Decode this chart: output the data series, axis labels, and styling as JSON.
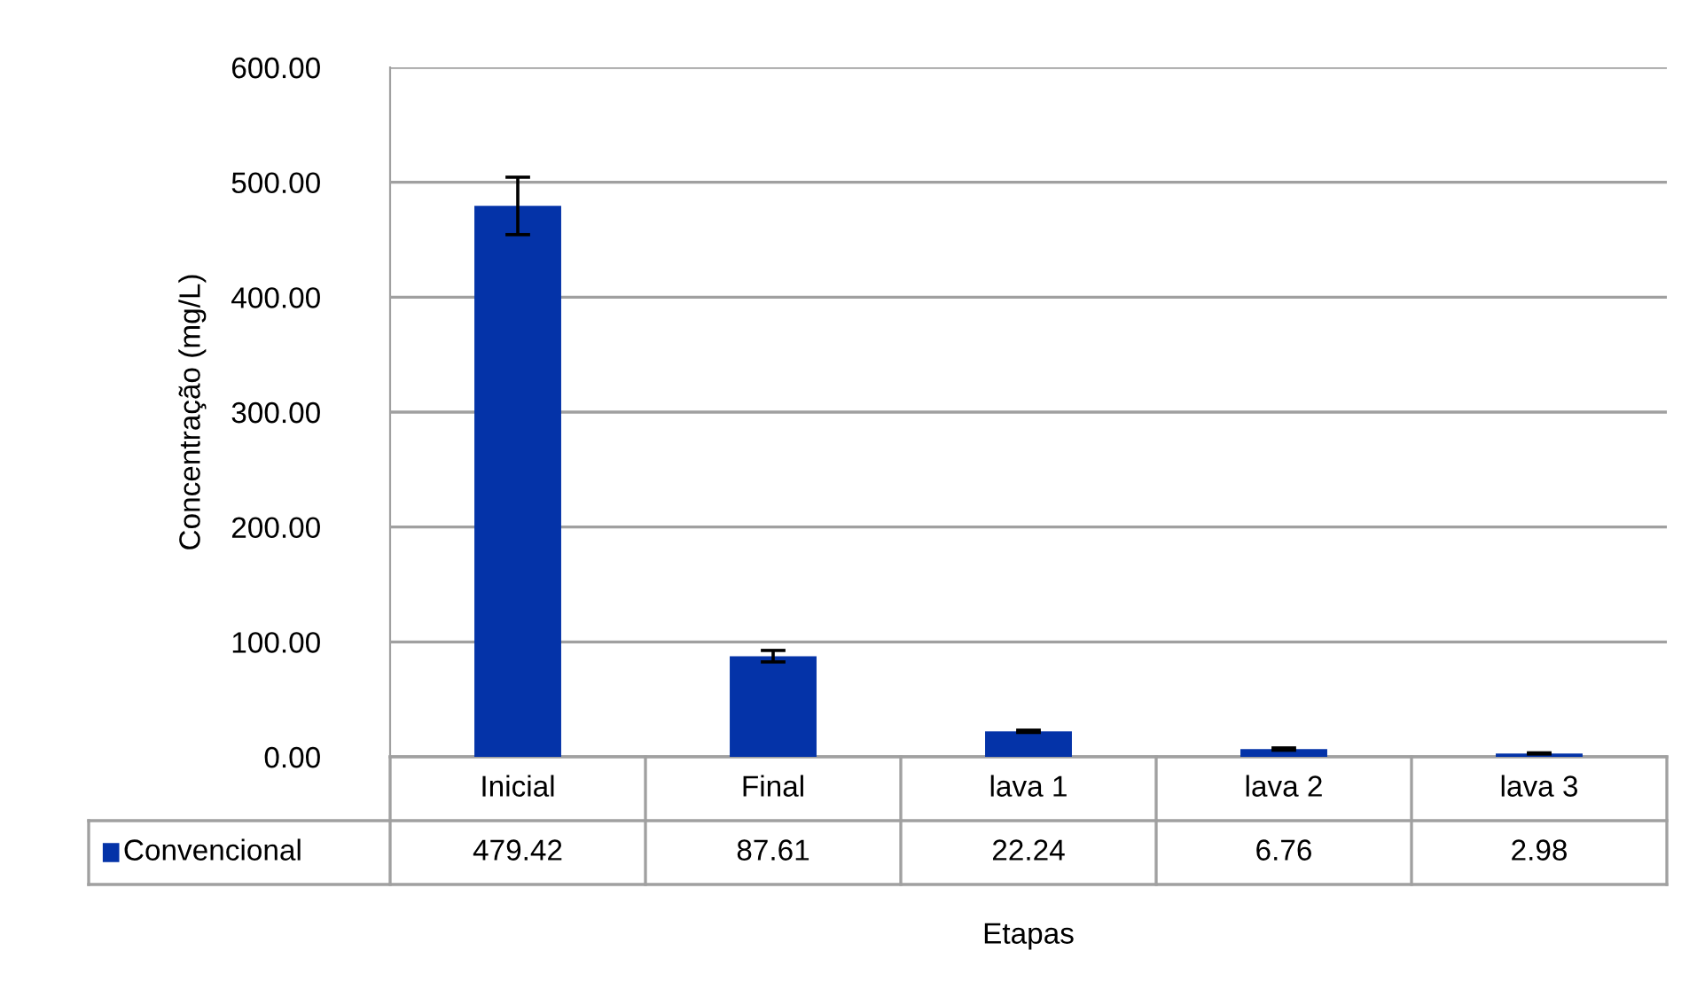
{
  "chart_data": {
    "type": "bar",
    "xlabel": "Etapas",
    "ylabel": "Concentração (mg/L)",
    "categories": [
      "Inicial",
      "Final",
      "lava 1",
      "lava 2",
      "lava 3"
    ],
    "series": [
      {
        "name": "Convencional",
        "color": "#0433a8",
        "values": [
          479.42,
          87.61,
          22.24,
          6.76,
          2.98
        ],
        "errors": [
          25,
          5,
          1,
          1,
          0.5
        ]
      }
    ],
    "ylim": [
      0,
      600
    ],
    "yticks": [
      {
        "value": 0,
        "label": "0.00"
      },
      {
        "value": 100,
        "label": "100.00"
      },
      {
        "value": 200,
        "label": "200.00"
      },
      {
        "value": 300,
        "label": "300.00"
      },
      {
        "value": 400,
        "label": "400.00"
      },
      {
        "value": 500,
        "label": "500.00"
      },
      {
        "value": 600,
        "label": "600.00"
      }
    ],
    "grid": "y",
    "data_labels": true,
    "legend": "bottom"
  }
}
